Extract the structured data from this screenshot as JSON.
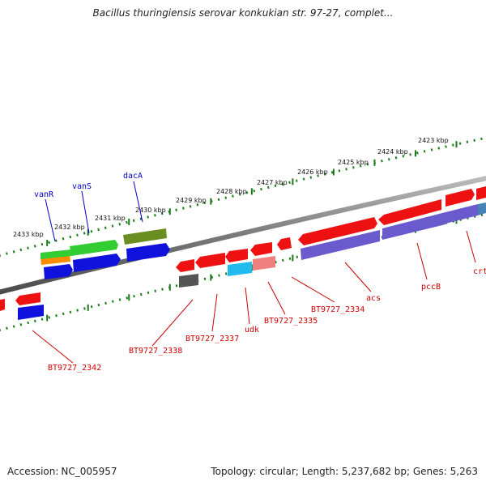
{
  "title": "Bacillus thuringiensis serovar konkukian str. 97-27, complet...",
  "footer": {
    "accession_label": "Accession:",
    "accession": "NC_005957",
    "topology_text": "Topology: circular; Length: 5,237,682 bp; Genes: 5,263"
  },
  "ruler": {
    "ticks": [
      "2433 kbp",
      "2432 kbp",
      "2431 kbp",
      "2430 kbp",
      "2429 kbp",
      "2428 kbp",
      "2427 kbp",
      "2426 kbp",
      "2425 kbp",
      "2424 kbp",
      "2423 kbp"
    ]
  },
  "genes": [
    {
      "name": "vanR",
      "color": "#0000cc"
    },
    {
      "name": "vanS",
      "color": "#0000cc"
    },
    {
      "name": "dacA",
      "color": "#0000cc"
    },
    {
      "name": "BT9727_2342",
      "color": "#cc0000"
    },
    {
      "name": "BT9727_2338",
      "color": "#cc0000"
    },
    {
      "name": "BT9727_2337",
      "color": "#cc0000"
    },
    {
      "name": "udk",
      "color": "#cc0000"
    },
    {
      "name": "BT9727_2335",
      "color": "#cc0000"
    },
    {
      "name": "BT9727_2334",
      "color": "#cc0000"
    },
    {
      "name": "acs",
      "color": "#cc0000"
    },
    {
      "name": "pccB",
      "color": "#cc0000"
    },
    {
      "name": "crt",
      "color": "#cc0000"
    }
  ],
  "colors": {
    "backbone": "#808080",
    "ruler": "#1a7a1a",
    "red_feature": "#ee1111",
    "blue_feature": "#1111dd",
    "green_feature": "#33cc33",
    "olive_feature": "#6b8e23",
    "orange_feature": "#ff8c00",
    "purple_feature": "#6a5acd",
    "cyan_feature": "#22bbee",
    "pink_feature": "#f08080",
    "grey_feature": "#555555"
  }
}
